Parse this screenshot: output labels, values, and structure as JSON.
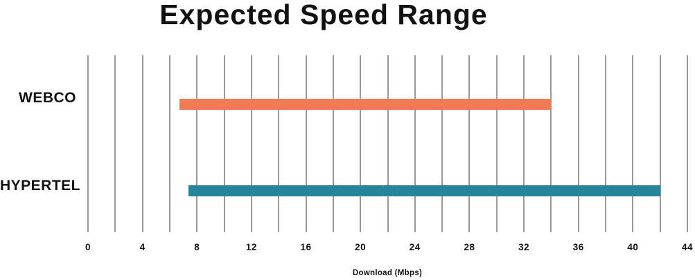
{
  "page": {
    "background": "#ffffff",
    "text_color": "#111111"
  },
  "chart_data": {
    "type": "bar",
    "subtype": "horizontal-range-bars",
    "title": "Expected Speed Range",
    "xlabel": "Download (Mbps)",
    "categories": [
      "WEBCO",
      "HYPERTEL"
    ],
    "series": [
      {
        "name": "WEBCO",
        "xmin": 6.7,
        "xmax": 34,
        "color": "#F07B55"
      },
      {
        "name": "HYPERTEL",
        "xmin": 7.4,
        "xmax": 42,
        "color": "#27849A"
      }
    ],
    "xlim": [
      0,
      44
    ],
    "x_tick_labels": [
      0,
      4,
      8,
      12,
      16,
      20,
      24,
      28,
      32,
      36,
      40,
      44
    ],
    "gridline_step": 2,
    "grid": "vertical-only",
    "gridline_color": "#9C9993",
    "legend": "none",
    "bar_thickness_px": 16
  }
}
